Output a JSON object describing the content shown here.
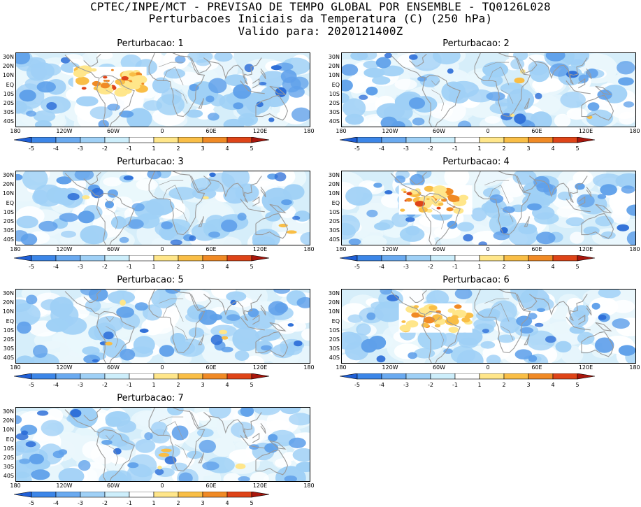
{
  "header": {
    "line1": "CPTEC/INPE/MCT - PREVISAO DE TEMPO GLOBAL POR ENSEMBLE - TQ0126L028",
    "line2": "Perturbacoes Iniciais da Temperatura (C) (250 hPa)",
    "line3": "Valido para: 2020121400Z"
  },
  "panels": [
    {
      "title": "Perturbacao: 1",
      "warm_box": true,
      "warm_level": 2
    },
    {
      "title": "Perturbacao: 2",
      "warm_box": false,
      "warm_level": 0
    },
    {
      "title": "Perturbacao: 3",
      "warm_box": false,
      "warm_level": 0
    },
    {
      "title": "Perturbacao: 4",
      "warm_box": true,
      "warm_level": 2
    },
    {
      "title": "Perturbacao: 5",
      "warm_box": false,
      "warm_level": 0
    },
    {
      "title": "Perturbacao: 6",
      "warm_box": true,
      "warm_level": 1
    },
    {
      "title": "Perturbacao: 7",
      "warm_box": false,
      "warm_level": 0
    }
  ],
  "lat_labels": [
    "30N",
    "20N",
    "10N",
    "EQ",
    "10S",
    "20S",
    "30S",
    "40S"
  ],
  "lon_labels": [
    "180",
    "120W",
    "60W",
    "0",
    "60E",
    "120E",
    "180"
  ],
  "colorbar": {
    "labels": [
      "-5",
      "-4",
      "-3",
      "-2",
      "-1",
      "1",
      "2",
      "3",
      "4",
      "5"
    ],
    "colors": [
      "#1f5fd6",
      "#3c86e8",
      "#6aaaf0",
      "#9fd0f6",
      "#cdeefb",
      "#ffffff",
      "#ffe68a",
      "#f9be46",
      "#f08a25",
      "#de4418",
      "#a8160c"
    ]
  },
  "map_colors": {
    "background": "#d6eefa",
    "light": "#eaf7fc",
    "white": "#ffffff",
    "mid": "#9fd0f6",
    "deep": "#5fa0ea",
    "deepest": "#2e6fd8",
    "coast": "#9a9a9a"
  }
}
